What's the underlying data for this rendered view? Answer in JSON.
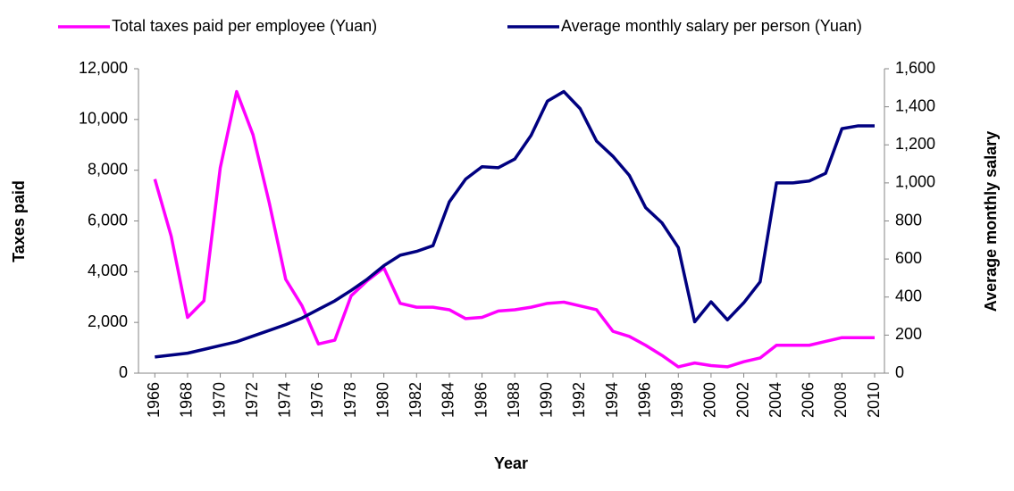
{
  "chart_data": {
    "type": "line",
    "x": [
      1966,
      1967,
      1968,
      1969,
      1970,
      1971,
      1972,
      1973,
      1974,
      1975,
      1976,
      1977,
      1978,
      1979,
      1980,
      1981,
      1982,
      1983,
      1984,
      1985,
      1986,
      1987,
      1988,
      1989,
      1990,
      1991,
      1992,
      1993,
      1994,
      1995,
      1996,
      1997,
      1998,
      1999,
      2000,
      2001,
      2002,
      2003,
      2004,
      2005,
      2006,
      2007,
      2008,
      2009,
      2010
    ],
    "xlim": [
      1965,
      2010.6
    ],
    "xticks": [
      1966,
      1968,
      1970,
      1972,
      1974,
      1976,
      1978,
      1980,
      1982,
      1984,
      1986,
      1988,
      1990,
      1992,
      1994,
      1996,
      1998,
      2000,
      2002,
      2004,
      2006,
      2008,
      2010
    ],
    "xlabel": "Year",
    "ylabel": "Taxes paid",
    "y2label": "Average monthly salary",
    "ylim": [
      0,
      12000
    ],
    "yticks": [
      0,
      {
        "value": 2000,
        "label": "2,000"
      },
      {
        "value": 4000,
        "label": "4,000"
      },
      {
        "value": 6000,
        "label": "6,000"
      },
      {
        "value": 8000,
        "label": "8,000"
      },
      {
        "value": 10000,
        "label": "10,000"
      },
      {
        "value": 12000,
        "label": "12,000"
      }
    ],
    "y2lim": [
      0,
      1600
    ],
    "y2ticks": [
      0,
      200,
      400,
      600,
      800,
      {
        "value": 1000,
        "label": "1,000"
      },
      {
        "value": 1200,
        "label": "1,200"
      },
      {
        "value": 1400,
        "label": "1,400"
      },
      {
        "value": 1600,
        "label": "1,600"
      }
    ],
    "legend": "top",
    "series": [
      {
        "name": "Total taxes paid per employee  (Yuan)",
        "color": "#ff00ff",
        "axis": "y",
        "values": [
          7650,
          5400,
          2200,
          2850,
          8100,
          11100,
          9400,
          6700,
          3700,
          2650,
          1150,
          1300,
          3050,
          3650,
          4150,
          2750,
          2600,
          2600,
          2500,
          2150,
          2200,
          2450,
          2500,
          2600,
          2750,
          2800,
          2650,
          2500,
          1650,
          1450,
          1100,
          700,
          250,
          400,
          300,
          250,
          450,
          600,
          1100,
          1100,
          1100,
          1250,
          1400,
          1400,
          1400
        ]
      },
      {
        "name": "Average monthly salary per person (Yuan)",
        "color": "#000080",
        "axis": "y2",
        "values": [
          85,
          95,
          105,
          125,
          145,
          165,
          195,
          225,
          255,
          290,
          335,
          380,
          435,
          495,
          565,
          620,
          640,
          670,
          900,
          1020,
          1085,
          1080,
          1125,
          1250,
          1430,
          1480,
          1390,
          1220,
          1140,
          1040,
          870,
          790,
          660,
          270,
          375,
          280,
          370,
          480,
          1000,
          1000,
          1010,
          1050,
          1285,
          1300,
          1300
        ]
      }
    ]
  }
}
